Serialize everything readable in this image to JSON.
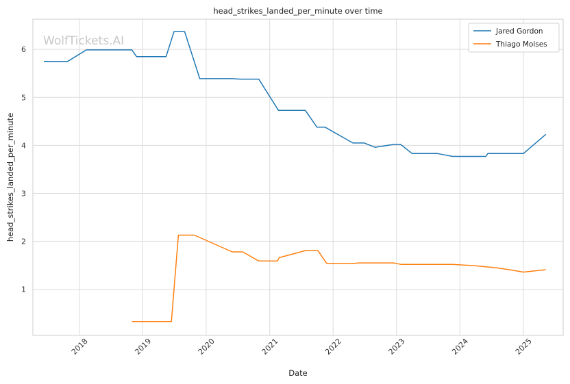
{
  "chart_data": {
    "type": "line",
    "title": "head_strikes_landed_per_minute over time",
    "xlabel": "Date",
    "ylabel": "head_strikes_landed_per_minute",
    "watermark": "WolfTickets.AI",
    "x_ticks": [
      "2018",
      "2019",
      "2020",
      "2021",
      "2022",
      "2023",
      "2024",
      "2025"
    ],
    "y_ticks": [
      "1",
      "2",
      "3",
      "4",
      "5",
      "6"
    ],
    "xlim": [
      "2017-04-08",
      "2025-08-18"
    ],
    "ylim": [
      0.04,
      6.63
    ],
    "grid": true,
    "legend_position": "top-right",
    "series": [
      {
        "name": "Jared Gordon",
        "color": "#1f77b4",
        "points": [
          [
            "2017-06-10",
            5.75
          ],
          [
            "2017-10-25",
            5.75
          ],
          [
            "2018-02-10",
            5.99
          ],
          [
            "2018-10-30",
            5.99
          ],
          [
            "2018-11-26",
            5.85
          ],
          [
            "2019-05-15",
            5.85
          ],
          [
            "2019-06-30",
            6.37
          ],
          [
            "2019-08-30",
            6.37
          ],
          [
            "2019-11-25",
            5.39
          ],
          [
            "2020-05-30",
            5.39
          ],
          [
            "2020-07-15",
            5.38
          ],
          [
            "2020-10-30",
            5.38
          ],
          [
            "2021-02-20",
            4.73
          ],
          [
            "2021-07-25",
            4.73
          ],
          [
            "2021-09-30",
            4.38
          ],
          [
            "2021-11-15",
            4.38
          ],
          [
            "2022-04-25",
            4.05
          ],
          [
            "2022-06-30",
            4.05
          ],
          [
            "2022-08-30",
            3.96
          ],
          [
            "2022-12-15",
            4.02
          ],
          [
            "2023-01-25",
            4.02
          ],
          [
            "2023-04-01",
            3.83
          ],
          [
            "2023-08-25",
            3.83
          ],
          [
            "2023-11-20",
            3.77
          ],
          [
            "2024-05-30",
            3.77
          ],
          [
            "2024-06-10",
            3.83
          ],
          [
            "2025-01-01",
            3.83
          ],
          [
            "2025-05-10",
            4.23
          ]
        ]
      },
      {
        "name": "Thiago Moises",
        "color": "#ff7f0e",
        "points": [
          [
            "2018-10-30",
            0.33
          ],
          [
            "2019-06-15",
            0.33
          ],
          [
            "2019-07-25",
            2.13
          ],
          [
            "2019-10-25",
            2.13
          ],
          [
            "2020-05-30",
            1.78
          ],
          [
            "2020-07-30",
            1.78
          ],
          [
            "2020-10-30",
            1.59
          ],
          [
            "2021-02-15",
            1.59
          ],
          [
            "2021-02-25",
            1.66
          ],
          [
            "2021-07-30",
            1.81
          ],
          [
            "2021-10-05",
            1.81
          ],
          [
            "2021-11-25",
            1.54
          ],
          [
            "2022-05-01",
            1.54
          ],
          [
            "2022-06-01",
            1.55
          ],
          [
            "2022-12-15",
            1.55
          ],
          [
            "2023-01-25",
            1.52
          ],
          [
            "2023-11-20",
            1.52
          ],
          [
            "2024-03-30",
            1.49
          ],
          [
            "2024-07-30",
            1.45
          ],
          [
            "2024-10-30",
            1.4
          ],
          [
            "2025-01-01",
            1.36
          ],
          [
            "2025-05-10",
            1.41
          ]
        ]
      }
    ]
  }
}
